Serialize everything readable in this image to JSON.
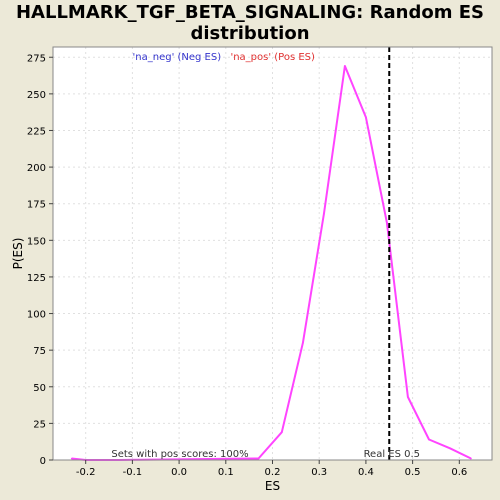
{
  "title_line1": "HALLMARK_TGF_BETA_SIGNALING: Random ES",
  "title_line2": "distribution",
  "chart_data": {
    "type": "line",
    "xlabel": "ES",
    "ylabel": "P(ES)",
    "xlim": [
      -0.27,
      0.67
    ],
    "ylim": [
      0,
      282
    ],
    "xticks": [
      -0.2,
      -0.1,
      0.0,
      0.1,
      0.2,
      0.3,
      0.4,
      0.5,
      0.6
    ],
    "xtick_labels": [
      "-0.2",
      "-0.1",
      "0.0",
      "0.1",
      "0.2",
      "0.3",
      "0.4",
      "0.5",
      "0.6"
    ],
    "yticks": [
      0,
      25,
      50,
      75,
      100,
      125,
      150,
      175,
      200,
      225,
      250,
      275
    ],
    "ytick_labels": [
      "0",
      "25",
      "50",
      "75",
      "100",
      "125",
      "150",
      "175",
      "200",
      "225",
      "250",
      "275"
    ],
    "grid": true,
    "legend": {
      "placement": "top-center",
      "entries": [
        {
          "label": "'na_neg' (Neg ES)",
          "color": "#3333cc"
        },
        {
          "label": "'na_pos' (Pos ES)",
          "color": "#e03030"
        }
      ]
    },
    "series": [
      {
        "color": "#ff44ff",
        "x": [
          -0.23,
          -0.2,
          -0.13,
          0.17,
          0.22,
          0.265,
          0.31,
          0.355,
          0.4,
          0.445,
          0.49,
          0.535,
          0.58,
          0.625
        ],
        "y": [
          1,
          0,
          0,
          1,
          19,
          80,
          168,
          269,
          234,
          162,
          43,
          14,
          8,
          1
        ]
      }
    ],
    "vline": {
      "x": 0.45,
      "color": "#000000",
      "style": "dashed"
    },
    "annotations": {
      "sets_text": "Sets with pos scores: 100%",
      "sets_x": -0.145,
      "real_es_text": "Real ES 0.5",
      "real_es_x": 0.395
    }
  },
  "colors": {
    "background": "#ece9d8",
    "plot_bg": "#ffffff",
    "grid": "#e0e0e0",
    "line": "#ff44ff"
  }
}
